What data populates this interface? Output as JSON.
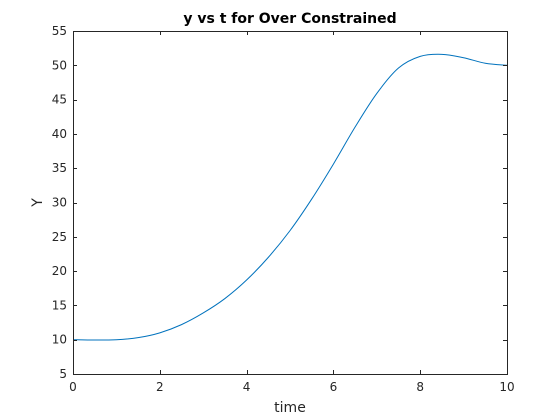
{
  "chart_data": {
    "type": "line",
    "title": "y vs t for Over Constrained",
    "xlabel": "time",
    "ylabel": "Y",
    "xlim": [
      0,
      10
    ],
    "ylim": [
      5,
      55
    ],
    "xticks": [
      0,
      2,
      4,
      6,
      8,
      10
    ],
    "yticks": [
      5,
      10,
      15,
      20,
      25,
      30,
      35,
      40,
      45,
      50,
      55
    ],
    "grid": false,
    "series": [
      {
        "color": "#0072BD",
        "x": [
          0,
          0.5,
          1,
          1.5,
          2,
          2.5,
          3,
          3.5,
          4,
          4.5,
          5,
          5.5,
          6,
          6.5,
          7,
          7.5,
          8,
          8.5,
          9,
          9.5,
          10
        ],
        "y": [
          10.0,
          9.95,
          10.0,
          10.3,
          11.0,
          12.2,
          13.9,
          16.0,
          18.7,
          22.0,
          25.9,
          30.5,
          35.6,
          41.0,
          45.9,
          49.6,
          51.3,
          51.6,
          51.1,
          50.3,
          50.0
        ]
      }
    ]
  }
}
